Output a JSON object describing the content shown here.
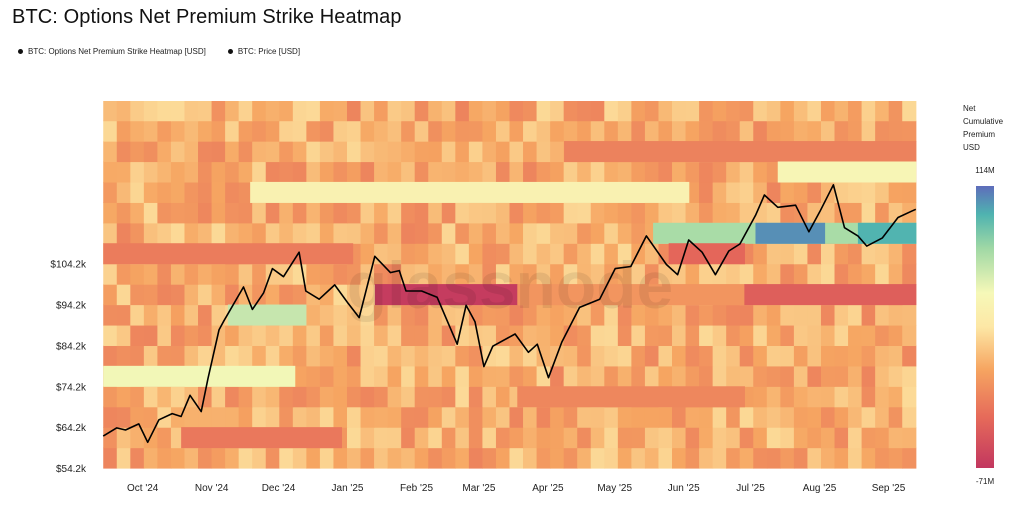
{
  "title": "BTC: Options Net Premium Strike Heatmap",
  "legend": [
    {
      "label": "BTC: Options Net Premium Strike Heatmap [USD]"
    },
    {
      "label": "BTC: Price [USD]"
    }
  ],
  "watermark": "glassnode",
  "colorbar": {
    "title_lines": [
      "Net",
      "Cumulative",
      "Premium",
      "USD"
    ],
    "max_label": "114M",
    "min_label": "-71M"
  },
  "chart_data": {
    "type": "heatmap",
    "title": "BTC: Options Net Premium Strike Heatmap",
    "xlabel": "",
    "ylabel": "",
    "x_ticks": [
      "Oct '24",
      "Nov '24",
      "Dec '24",
      "Jan '25",
      "Feb '25",
      "Mar '25",
      "Apr '25",
      "May '25",
      "Jun '25",
      "Jul '25",
      "Aug '25",
      "Sep '25"
    ],
    "y_ticks": [
      "$104.2k",
      "$94.2k",
      "$84.2k",
      "$74.2k",
      "$64.2k",
      "$54.2k"
    ],
    "y_tick_values": [
      104200,
      94200,
      84200,
      74200,
      64200,
      54200
    ],
    "ylim": [
      54200,
      144000
    ],
    "strike_bins_usd": [
      54200,
      59200,
      64200,
      69200,
      74200,
      79200,
      84200,
      89200,
      94200,
      99200,
      104200,
      109200,
      114200,
      119200,
      124200,
      129200,
      134200,
      139200
    ],
    "colorbar_range_usd": [
      -71000000,
      114000000
    ],
    "heat_regions": [
      {
        "strike_from": 94200,
        "strike_to": 99200,
        "date_from": "2025-01-20",
        "date_to": "2025-03-25",
        "net_premium": -68000000
      },
      {
        "strike_from": 94200,
        "strike_to": 99200,
        "date_from": "2025-03-25",
        "date_to": "2025-07-05",
        "net_premium": -15000000
      },
      {
        "strike_from": 94200,
        "strike_to": 99200,
        "date_from": "2025-07-05",
        "date_to": "2025-09-20",
        "net_premium": -45000000
      },
      {
        "strike_from": 109200,
        "strike_to": 114200,
        "date_from": "2025-05-25",
        "date_to": "2025-09-20",
        "net_premium": 70000000
      },
      {
        "strike_from": 109200,
        "strike_to": 114200,
        "date_from": "2025-07-10",
        "date_to": "2025-08-10",
        "net_premium": 105000000
      },
      {
        "strike_from": 109200,
        "strike_to": 114200,
        "date_from": "2025-08-25",
        "date_to": "2025-09-20",
        "net_premium": 95000000
      },
      {
        "strike_from": 104200,
        "strike_to": 109200,
        "date_from": "2024-09-20",
        "date_to": "2025-01-10",
        "net_premium": -28000000
      },
      {
        "strike_from": 104200,
        "strike_to": 109200,
        "date_from": "2025-06-01",
        "date_to": "2025-07-05",
        "net_premium": -40000000
      },
      {
        "strike_from": 119200,
        "strike_to": 124200,
        "date_from": "2024-11-25",
        "date_to": "2025-06-10",
        "net_premium": 35000000
      },
      {
        "strike_from": 74200,
        "strike_to": 79200,
        "date_from": "2024-09-20",
        "date_to": "2024-12-15",
        "net_premium": 45000000
      },
      {
        "strike_from": 89200,
        "strike_to": 94200,
        "date_from": "2024-11-15",
        "date_to": "2024-12-20",
        "net_premium": 60000000
      },
      {
        "strike_from": 69200,
        "strike_to": 74200,
        "date_from": "2025-03-25",
        "date_to": "2025-07-05",
        "net_premium": -22000000
      },
      {
        "strike_from": 59200,
        "strike_to": 64200,
        "date_from": "2024-10-25",
        "date_to": "2025-01-05",
        "net_premium": -30000000
      },
      {
        "strike_from": 129200,
        "strike_to": 134200,
        "date_from": "2025-04-15",
        "date_to": "2025-09-20",
        "net_premium": -25000000
      },
      {
        "strike_from": 124200,
        "strike_to": 129200,
        "date_from": "2025-07-20",
        "date_to": "2025-09-20",
        "net_premium": 40000000
      }
    ],
    "series": [
      {
        "name": "BTC: Price [USD]",
        "x": [
          "2024-09-20",
          "2024-09-26",
          "2024-09-30",
          "2024-10-06",
          "2024-10-10",
          "2024-10-15",
          "2024-10-21",
          "2024-10-25",
          "2024-10-29",
          "2024-11-03",
          "2024-11-06",
          "2024-11-11",
          "2024-11-13",
          "2024-11-22",
          "2024-11-26",
          "2024-12-01",
          "2024-12-05",
          "2024-12-10",
          "2024-12-17",
          "2024-12-20",
          "2024-12-26",
          "2025-01-02",
          "2025-01-08",
          "2025-01-13",
          "2025-01-20",
          "2025-01-27",
          "2025-01-31",
          "2025-02-03",
          "2025-02-10",
          "2025-02-17",
          "2025-02-26",
          "2025-03-02",
          "2025-03-06",
          "2025-03-10",
          "2025-03-14",
          "2025-03-24",
          "2025-03-30",
          "2025-04-03",
          "2025-04-08",
          "2025-04-14",
          "2025-04-22",
          "2025-05-01",
          "2025-05-08",
          "2025-05-15",
          "2025-05-22",
          "2025-05-31",
          "2025-06-05",
          "2025-06-10",
          "2025-06-16",
          "2025-06-22",
          "2025-06-28",
          "2025-07-03",
          "2025-07-10",
          "2025-07-14",
          "2025-07-20",
          "2025-07-28",
          "2025-08-03",
          "2025-08-08",
          "2025-08-14",
          "2025-08-19",
          "2025-08-25",
          "2025-08-29",
          "2025-09-05",
          "2025-09-12",
          "2025-09-18",
          "2025-09-20"
        ],
        "values": [
          62000,
          64000,
          63500,
          65000,
          60500,
          66000,
          67500,
          66800,
          72000,
          68000,
          76000,
          88000,
          90000,
          98500,
          93000,
          97000,
          103000,
          101000,
          107000,
          97500,
          95500,
          99000,
          94500,
          91000,
          106000,
          102000,
          102500,
          97500,
          97500,
          96000,
          84500,
          94000,
          90000,
          79000,
          84000,
          87000,
          82500,
          84500,
          76300,
          85000,
          93500,
          95500,
          103000,
          103500,
          111000,
          104000,
          101500,
          110000,
          107000,
          101500,
          107300,
          109000,
          116000,
          121000,
          118000,
          118500,
          112000,
          117000,
          123500,
          113000,
          111000,
          108500,
          110500,
          115500,
          117000,
          117500
        ]
      }
    ]
  }
}
